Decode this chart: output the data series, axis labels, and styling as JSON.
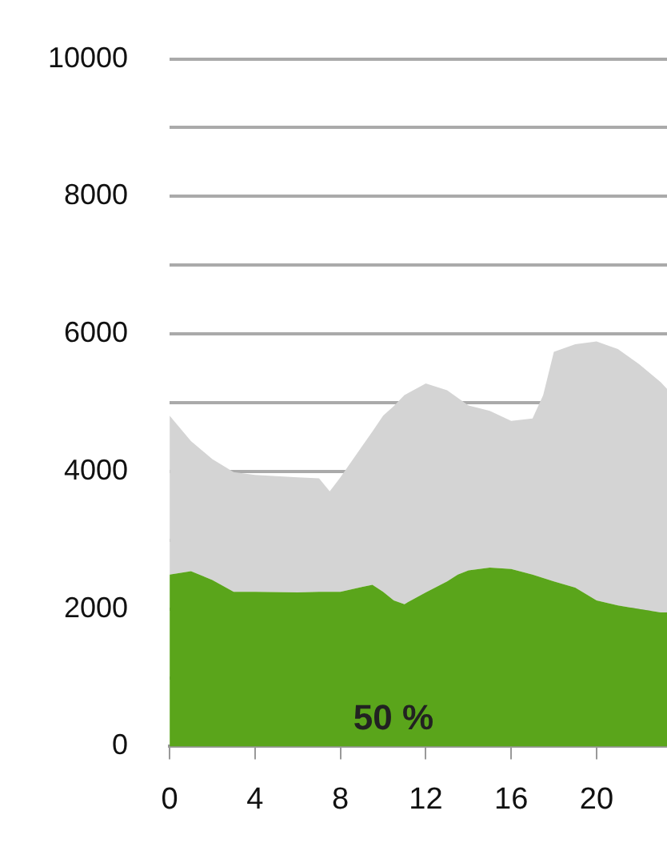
{
  "chart_data": {
    "type": "area",
    "stacked": true,
    "x": [
      0,
      1,
      2,
      3,
      4,
      6,
      7,
      7.5,
      8,
      9,
      9.5,
      10,
      10.5,
      11,
      12,
      13,
      13.5,
      14,
      15,
      16,
      17,
      17.5,
      18,
      19,
      20,
      21,
      22,
      23,
      23.3
    ],
    "series": [
      {
        "color": "#5aa51b",
        "values": [
          2500,
          2550,
          2420,
          2250,
          2250,
          2240,
          2250,
          2250,
          2250,
          2320,
          2350,
          2250,
          2125,
          2070,
          2240,
          2400,
          2500,
          2560,
          2600,
          2580,
          2500,
          2450,
          2400,
          2310,
          2125,
          2050,
          2000,
          1950,
          1950
        ]
      },
      {
        "color": "#d4d4d4",
        "values": [
          2310,
          1890,
          1760,
          1740,
          1700,
          1675,
          1650,
          1460,
          1665,
          2040,
          2230,
          2560,
          2825,
          3040,
          3040,
          2780,
          2570,
          2400,
          2280,
          2155,
          2270,
          2660,
          3340,
          3540,
          3765,
          3730,
          3560,
          3350,
          3250
        ]
      }
    ],
    "xlim": [
      0,
      23.3
    ],
    "xticks": [
      0,
      4,
      8,
      12,
      16,
      20
    ],
    "ylim": [
      0,
      10000
    ],
    "yticks": [
      0,
      {
        "value": 1000,
        "label": null
      },
      2000,
      {
        "value": 3000,
        "label": null
      },
      4000,
      {
        "value": 5000,
        "label": null
      },
      6000,
      {
        "value": 7000,
        "label": null
      },
      8000,
      {
        "value": 9000,
        "label": null
      },
      10000
    ],
    "grid": "y",
    "legend": false,
    "annotations": [
      "50 %"
    ]
  }
}
